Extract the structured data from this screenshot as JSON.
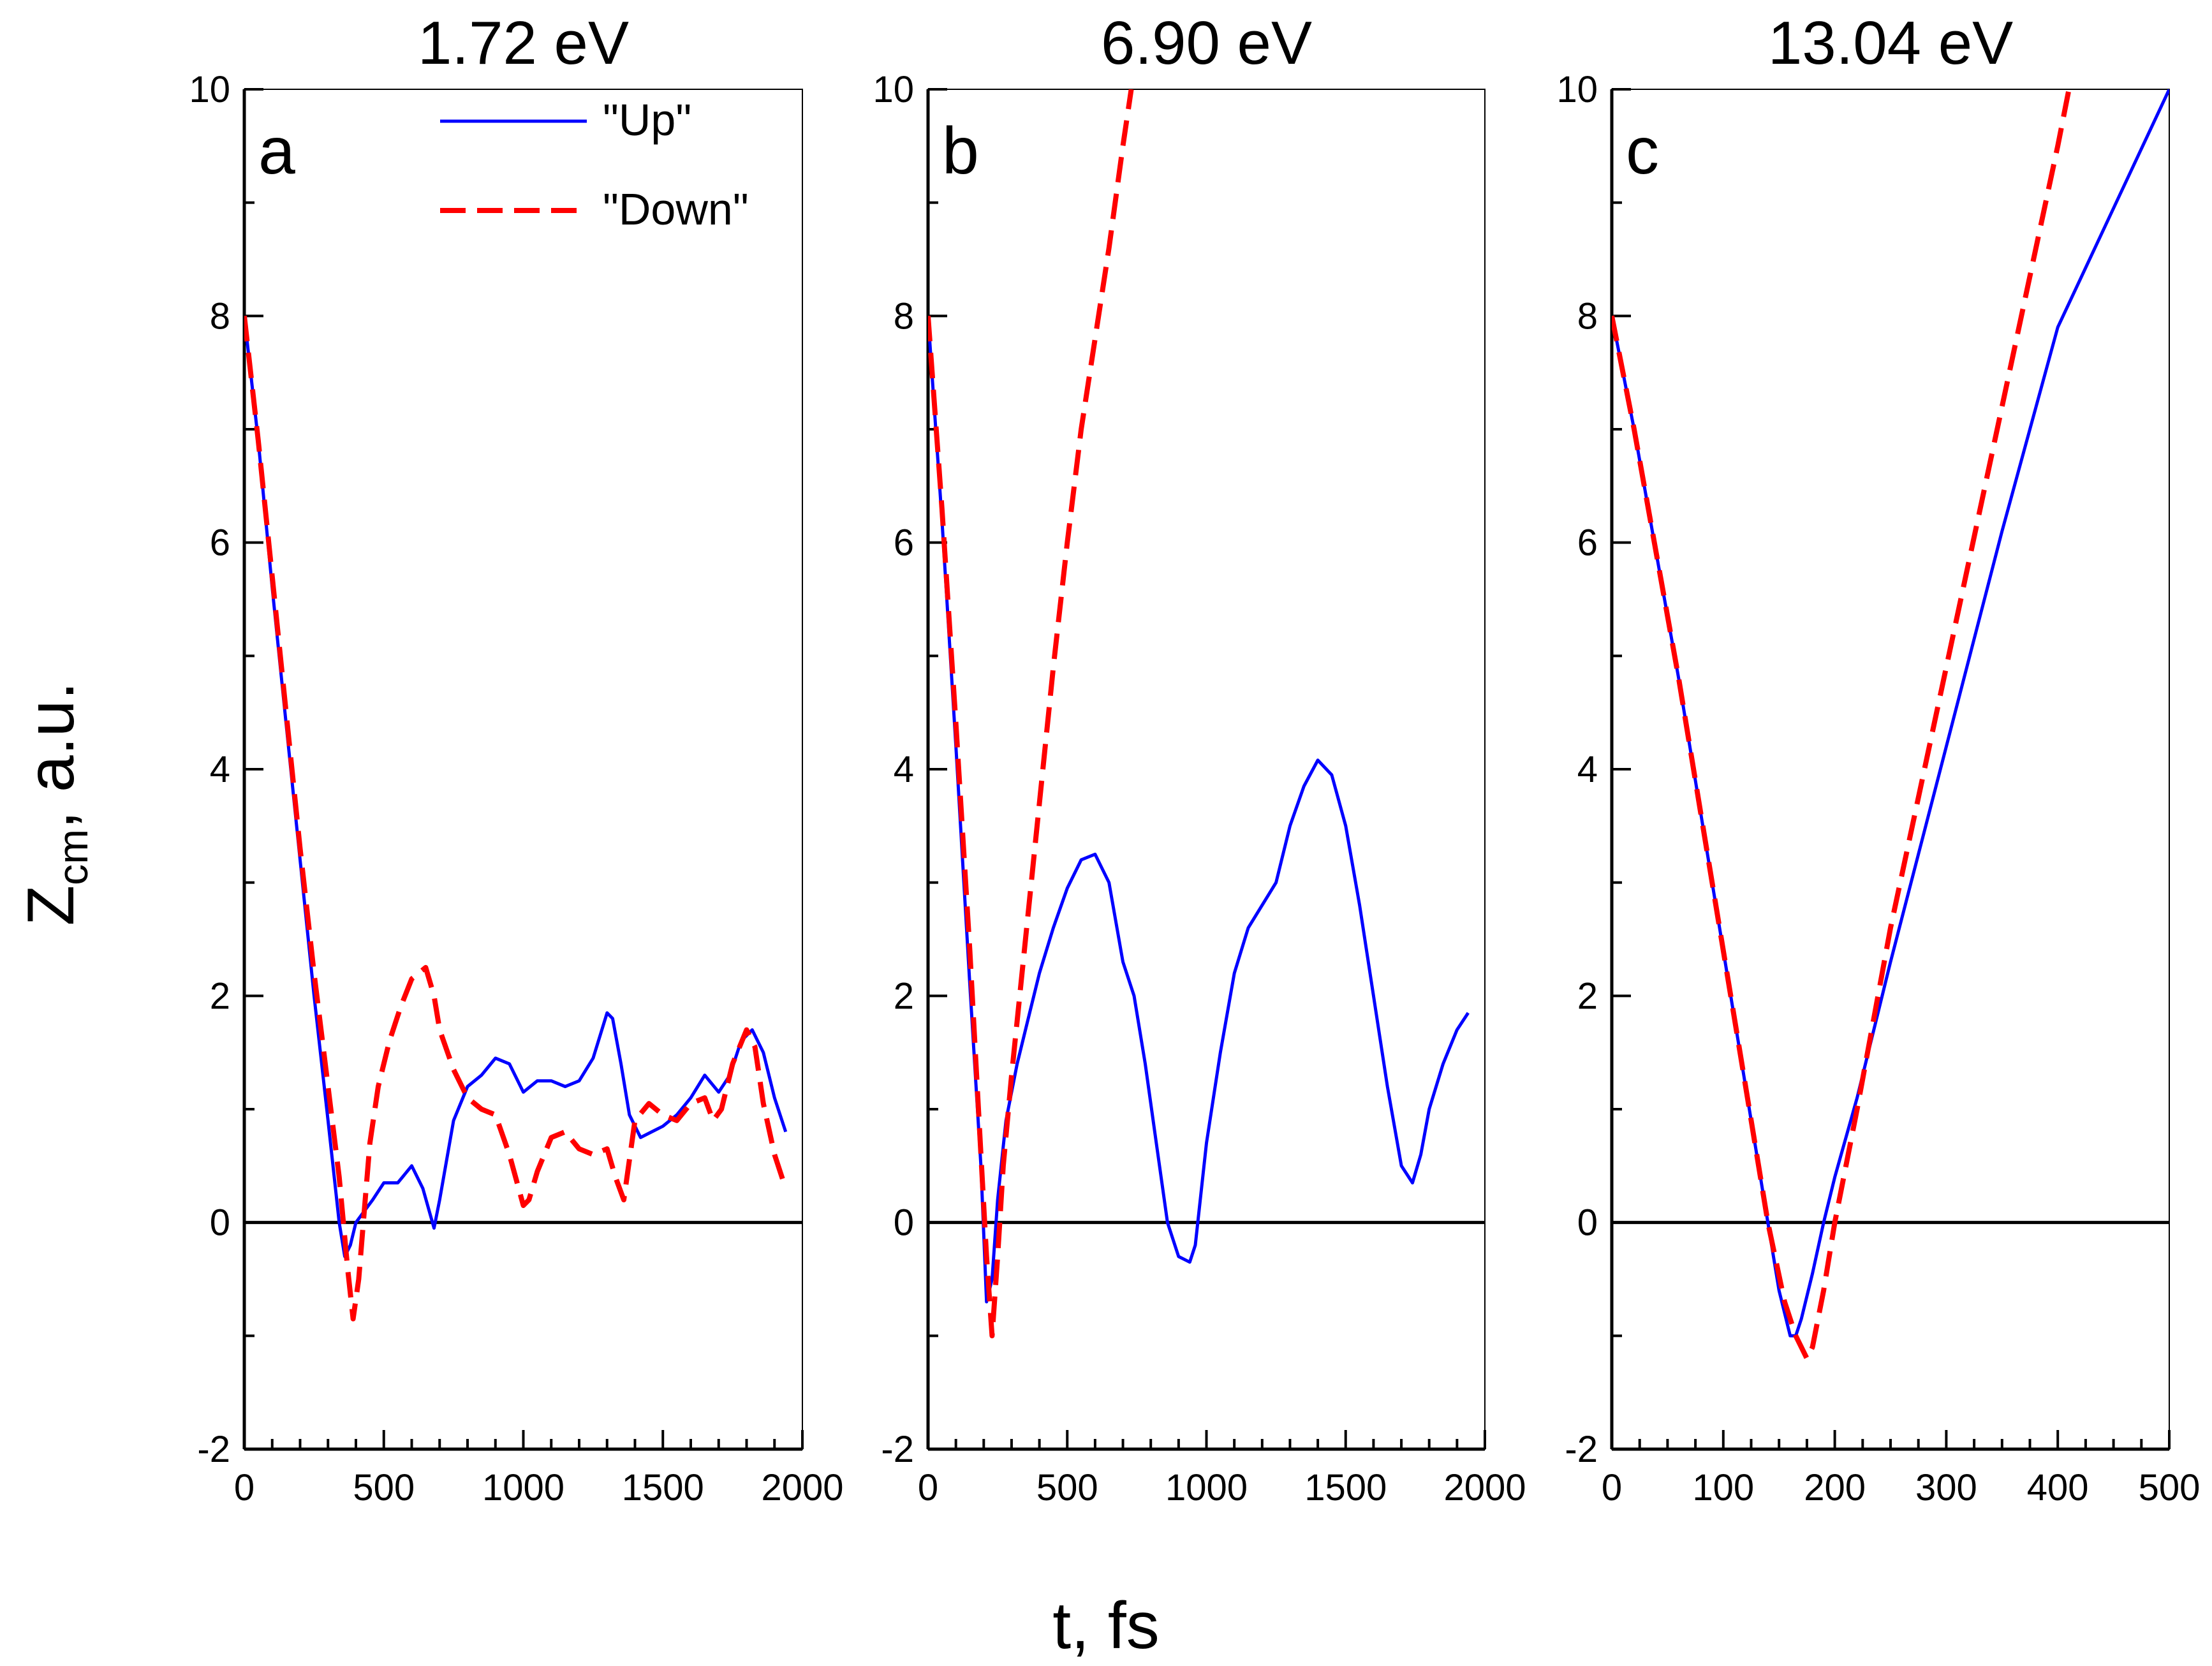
{
  "figure": {
    "ylabel_main": "Z",
    "ylabel_sub": "cm",
    "ylabel_rest": ", a.u.",
    "xlabel": "t, fs"
  },
  "legend": {
    "entries": [
      {
        "label": "\"Up\"",
        "color": "#0000ff",
        "style": "solid"
      },
      {
        "label": "\"Down\"",
        "color": "#ff0000",
        "style": "dashed"
      }
    ],
    "location": "top-right of panel a"
  },
  "chart_data": [
    {
      "type": "line",
      "panel_label": "a",
      "title": "1.72 eV",
      "xlim": [
        0,
        2000
      ],
      "ylim": [
        -2,
        10
      ],
      "xticks": [
        "0",
        "500",
        "1000",
        "1500",
        "2000"
      ],
      "yticks": [
        "-2",
        "0",
        "2",
        "4",
        "6",
        "8",
        "10"
      ],
      "xtick_values": [
        0,
        500,
        1000,
        1500,
        2000
      ],
      "ytick_values": [
        -2,
        0,
        2,
        4,
        6,
        8,
        10
      ],
      "xminor_step": 100,
      "ymajor_step": 2,
      "hline": 0,
      "series": [
        {
          "name": "\"Up\"",
          "color": "#0000ff",
          "dashed": false,
          "x": [
            0,
            50,
            100,
            150,
            200,
            250,
            300,
            340,
            360,
            380,
            400,
            430,
            460,
            500,
            550,
            600,
            640,
            680,
            700,
            750,
            800,
            850,
            900,
            950,
            1000,
            1050,
            1100,
            1150,
            1200,
            1250,
            1300,
            1320,
            1350,
            1380,
            1420,
            1460,
            1500,
            1550,
            1600,
            1650,
            1700,
            1740,
            1780,
            1820,
            1860,
            1900,
            1940
          ],
          "y": [
            8.0,
            6.9,
            5.6,
            4.4,
            3.2,
            2.0,
            0.9,
            0.0,
            -0.3,
            -0.2,
            0.0,
            0.1,
            0.2,
            0.35,
            0.35,
            0.5,
            0.3,
            -0.05,
            0.2,
            0.9,
            1.2,
            1.3,
            1.45,
            1.4,
            1.15,
            1.25,
            1.25,
            1.2,
            1.25,
            1.45,
            1.85,
            1.8,
            1.4,
            0.95,
            0.75,
            0.8,
            0.85,
            0.95,
            1.1,
            1.3,
            1.15,
            1.3,
            1.6,
            1.7,
            1.5,
            1.1,
            0.8
          ]
        },
        {
          "name": "\"Down\"",
          "color": "#ff0000",
          "dashed": true,
          "x": [
            0,
            50,
            100,
            150,
            200,
            250,
            300,
            340,
            370,
            390,
            410,
            430,
            450,
            480,
            520,
            560,
            600,
            650,
            680,
            700,
            750,
            800,
            850,
            900,
            950,
            1000,
            1020,
            1050,
            1100,
            1150,
            1200,
            1250,
            1300,
            1330,
            1360,
            1400,
            1450,
            1500,
            1550,
            1600,
            1650,
            1680,
            1710,
            1750,
            1800,
            1830,
            1860,
            1900,
            1940
          ],
          "y": [
            8.0,
            6.9,
            5.7,
            4.5,
            3.3,
            2.2,
            1.2,
            0.4,
            -0.4,
            -0.85,
            -0.5,
            0.1,
            0.7,
            1.2,
            1.6,
            1.9,
            2.15,
            2.25,
            2.0,
            1.7,
            1.35,
            1.1,
            1.0,
            0.95,
            0.6,
            0.15,
            0.2,
            0.45,
            0.75,
            0.8,
            0.65,
            0.6,
            0.65,
            0.4,
            0.2,
            0.9,
            1.05,
            0.95,
            0.9,
            1.05,
            1.1,
            0.9,
            1.0,
            1.4,
            1.7,
            1.55,
            1.05,
            0.6,
            0.3
          ]
        }
      ]
    },
    {
      "type": "line",
      "panel_label": "b",
      "title": "6.90 eV",
      "xlim": [
        0,
        2000
      ],
      "ylim": [
        -2,
        10
      ],
      "xticks": [
        "0",
        "500",
        "1000",
        "1500",
        "2000"
      ],
      "yticks": [
        "-2",
        "0",
        "2",
        "4",
        "6",
        "8",
        "10"
      ],
      "xtick_values": [
        0,
        500,
        1000,
        1500,
        2000
      ],
      "ytick_values": [
        -2,
        0,
        2,
        4,
        6,
        8,
        10
      ],
      "xminor_step": 100,
      "ymajor_step": 2,
      "hline": 0,
      "series": [
        {
          "name": "\"Up\"",
          "color": "#0000ff",
          "dashed": false,
          "x": [
            0,
            50,
            100,
            150,
            190,
            210,
            230,
            250,
            280,
            320,
            360,
            400,
            450,
            500,
            550,
            600,
            650,
            700,
            740,
            780,
            820,
            860,
            900,
            940,
            960,
            1000,
            1050,
            1100,
            1150,
            1200,
            1250,
            1300,
            1350,
            1400,
            1450,
            1500,
            1550,
            1600,
            1650,
            1700,
            1740,
            1770,
            1800,
            1850,
            1900,
            1940
          ],
          "y": [
            8.0,
            6.2,
            4.2,
            2.1,
            0.5,
            -0.7,
            -0.5,
            0.2,
            0.9,
            1.4,
            1.8,
            2.2,
            2.6,
            2.95,
            3.2,
            3.25,
            3.0,
            2.3,
            2.0,
            1.4,
            0.7,
            0.0,
            -0.3,
            -0.35,
            -0.2,
            0.7,
            1.5,
            2.2,
            2.6,
            2.8,
            3.0,
            3.5,
            3.85,
            4.08,
            3.95,
            3.5,
            2.8,
            2.0,
            1.2,
            0.5,
            0.35,
            0.6,
            1.0,
            1.4,
            1.7,
            1.85
          ]
        },
        {
          "name": "\"Down\"",
          "color": "#ff0000",
          "dashed": true,
          "x": [
            0,
            50,
            100,
            150,
            190,
            210,
            230,
            250,
            270,
            300,
            350,
            400,
            450,
            500,
            550,
            600,
            650,
            700,
            730
          ],
          "y": [
            8.0,
            6.3,
            4.4,
            2.4,
            0.6,
            -0.3,
            -1.0,
            -0.3,
            0.5,
            1.3,
            2.5,
            3.7,
            4.9,
            6.0,
            7.0,
            7.8,
            8.6,
            9.5,
            10.0
          ]
        }
      ]
    },
    {
      "type": "line",
      "panel_label": "c",
      "title": "13.04 eV",
      "xlim": [
        0,
        500
      ],
      "ylim": [
        -2,
        10
      ],
      "xticks": [
        "0",
        "100",
        "200",
        "300",
        "400",
        "500"
      ],
      "yticks": [
        "-2",
        "0",
        "2",
        "4",
        "6",
        "8",
        "10"
      ],
      "xtick_values": [
        0,
        100,
        200,
        300,
        400,
        500
      ],
      "ytick_values": [
        -2,
        0,
        2,
        4,
        6,
        8,
        10
      ],
      "xminor_step": 25,
      "ymajor_step": 2,
      "hline": 0,
      "series": [
        {
          "name": "\"Up\"",
          "color": "#0000ff",
          "dashed": false,
          "x": [
            0,
            20,
            40,
            60,
            80,
            100,
            120,
            140,
            150,
            160,
            165,
            170,
            180,
            190,
            200,
            220,
            250,
            300,
            350,
            400,
            450,
            500
          ],
          "y": [
            8.0,
            7.0,
            5.9,
            4.8,
            3.6,
            2.4,
            1.2,
            0.0,
            -0.6,
            -1.0,
            -1.0,
            -0.85,
            -0.45,
            0.0,
            0.4,
            1.1,
            2.3,
            4.2,
            6.1,
            7.9,
            8.95,
            10.0
          ]
        },
        {
          "name": "\"Down\"",
          "color": "#ff0000",
          "dashed": true,
          "x": [
            0,
            20,
            40,
            60,
            80,
            100,
            120,
            140,
            155,
            165,
            175,
            180,
            190,
            200,
            220,
            250,
            300,
            350,
            400,
            410
          ],
          "y": [
            8.0,
            7.0,
            5.9,
            4.8,
            3.6,
            2.4,
            1.2,
            0.0,
            -0.7,
            -1.0,
            -1.2,
            -1.1,
            -0.6,
            0.0,
            1.0,
            2.6,
            4.9,
            7.2,
            9.5,
            10.0
          ]
        }
      ]
    }
  ]
}
